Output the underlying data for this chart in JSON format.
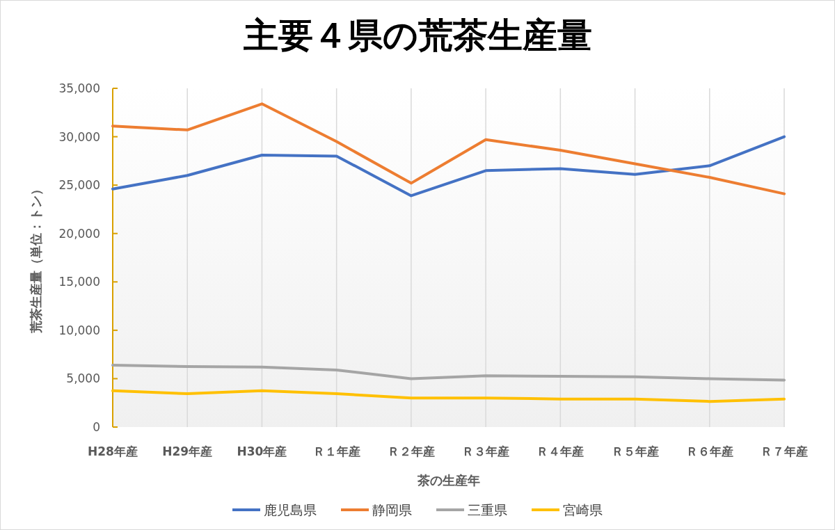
{
  "chart_data": {
    "type": "line",
    "title": "主要４県の荒茶生産量",
    "xlabel": "茶の生産年",
    "ylabel": "荒茶生産量（単位：トン）",
    "categories": [
      "H28年産",
      "H29年産",
      "H30年産",
      "Ｒ１年産",
      "Ｒ２年産",
      "Ｒ３年産",
      "Ｒ４年産",
      "Ｒ５年産",
      "Ｒ６年産",
      "Ｒ７年産"
    ],
    "series": [
      {
        "name": "鹿児島県",
        "color": "#4472c4",
        "values": [
          24600,
          26000,
          28100,
          28000,
          23900,
          26500,
          26700,
          26100,
          27000,
          30000
        ]
      },
      {
        "name": "静岡県",
        "color": "#ed7d31",
        "values": [
          31100,
          30700,
          33400,
          29500,
          25200,
          29700,
          28600,
          27200,
          25800,
          24100
        ]
      },
      {
        "name": "三重県",
        "color": "#a5a5a5",
        "values": [
          6400,
          6250,
          6200,
          5900,
          5000,
          5300,
          5250,
          5200,
          5000,
          4850
        ]
      },
      {
        "name": "宮崎県",
        "color": "#ffc000",
        "values": [
          3750,
          3450,
          3750,
          3450,
          3000,
          3000,
          2900,
          2900,
          2650,
          2900
        ]
      }
    ],
    "ylim": [
      0,
      35000
    ],
    "yticks": [
      {
        "value": 0,
        "label": "0"
      },
      {
        "value": 5000,
        "label": "5,000"
      },
      {
        "value": 10000,
        "label": "10,000"
      },
      {
        "value": 15000,
        "label": "15,000"
      },
      {
        "value": 20000,
        "label": "20,000"
      },
      {
        "value": 25000,
        "label": "25,000"
      },
      {
        "value": 30000,
        "label": "30,000"
      },
      {
        "value": 35000,
        "label": "35,000"
      }
    ],
    "grid": "x",
    "legend": "bottom",
    "marker": "none",
    "line_style": "solid"
  }
}
